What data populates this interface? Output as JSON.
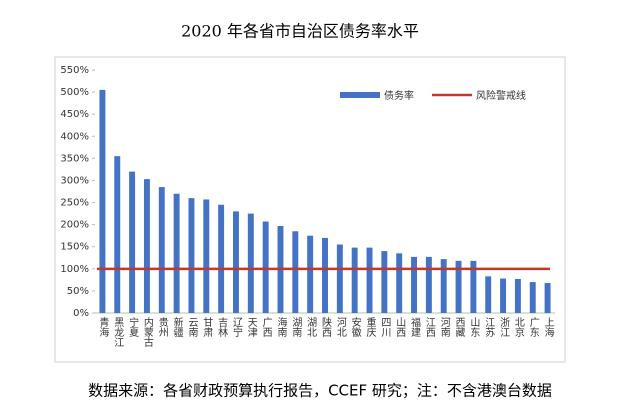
{
  "chart_data": {
    "type": "bar",
    "title": "2020 年各省市自治区债务率水平",
    "source": "数据来源：各省财政预算执行报告，CCEF 研究；注：不含港澳台数据",
    "categories": [
      "青海",
      "黑龙江",
      "宁夏",
      "内蒙古",
      "贵州",
      "新疆",
      "云南",
      "甘肃",
      "吉林",
      "辽宁",
      "天津",
      "广西",
      "海南",
      "湖南",
      "湖北",
      "陕西",
      "河北",
      "安徽",
      "重庆",
      "四川",
      "山西",
      "福建",
      "江西",
      "河南",
      "西藏",
      "山东",
      "江苏",
      "浙江",
      "北京",
      "广东",
      "上海"
    ],
    "series": [
      {
        "name": "债务率",
        "color": "#4472c4",
        "values": [
          505,
          355,
          320,
          303,
          285,
          270,
          260,
          257,
          245,
          230,
          225,
          207,
          197,
          185,
          175,
          170,
          155,
          148,
          148,
          140,
          135,
          127,
          127,
          122,
          118,
          118,
          83,
          78,
          77,
          70,
          68
        ]
      }
    ],
    "reference_line": {
      "name": "风险警戒线",
      "value": 100,
      "color": "#c0392b"
    },
    "ylim": [
      0,
      550
    ],
    "yticks": [
      {
        "value": 0,
        "label": "0%"
      },
      {
        "value": 50,
        "label": "50%"
      },
      {
        "value": 100,
        "label": "100%"
      },
      {
        "value": 150,
        "label": "150%"
      },
      {
        "value": 200,
        "label": "200%"
      },
      {
        "value": 250,
        "label": "250%"
      },
      {
        "value": 300,
        "label": "300%"
      },
      {
        "value": 350,
        "label": "350%"
      },
      {
        "value": 400,
        "label": "400%"
      },
      {
        "value": 450,
        "label": "450%"
      },
      {
        "value": 500,
        "label": "500%"
      },
      {
        "value": 550,
        "label": "550%"
      }
    ],
    "grid": false
  }
}
